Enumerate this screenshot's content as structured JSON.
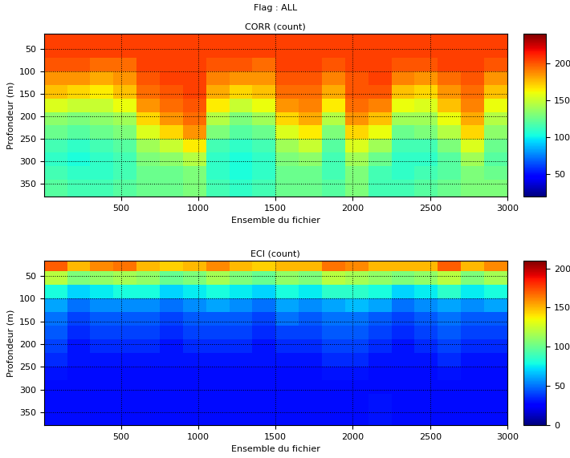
{
  "title": "Flag : ALL",
  "chart_data": [
    {
      "type": "heatmap",
      "title": "CORR (count)",
      "x_label": "Ensemble du fichier",
      "y_label": "Profondeur (m)",
      "x_edges": [
        0,
        150,
        300,
        450,
        600,
        750,
        900,
        1050,
        1200,
        1350,
        1500,
        1650,
        1800,
        1950,
        2100,
        2250,
        2400,
        2550,
        2700,
        2850,
        3000
      ],
      "y_edges": [
        16,
        40,
        70,
        100,
        130,
        160,
        190,
        220,
        250,
        280,
        310,
        340,
        378
      ],
      "xlim": [
        0,
        3000
      ],
      "ylim": [
        378,
        16
      ],
      "xticks": [
        500,
        1000,
        1500,
        2000,
        2500,
        3000
      ],
      "yticks": [
        50,
        100,
        150,
        200,
        250,
        300,
        350
      ],
      "grid": true,
      "colorbar": {
        "range": [
          20,
          240
        ],
        "ticks": [
          50,
          100,
          150,
          200
        ]
      },
      "cells": [
        [
          205,
          205,
          205,
          205,
          205,
          205,
          205,
          205,
          205,
          205,
          205,
          205,
          205,
          205,
          205,
          205,
          205,
          205,
          205,
          205
        ],
        [
          205,
          205,
          205,
          205,
          205,
          205,
          205,
          205,
          205,
          205,
          205,
          205,
          205,
          205,
          205,
          205,
          205,
          205,
          205,
          205
        ],
        [
          200,
          200,
          195,
          195,
          205,
          205,
          205,
          200,
          200,
          195,
          205,
          205,
          200,
          205,
          205,
          200,
          200,
          205,
          205,
          200
        ],
        [
          185,
          185,
          180,
          185,
          200,
          205,
          205,
          190,
          185,
          185,
          200,
          200,
          190,
          200,
          205,
          190,
          185,
          195,
          200,
          185
        ],
        [
          175,
          170,
          165,
          175,
          195,
          200,
          205,
          180,
          170,
          175,
          195,
          195,
          180,
          200,
          200,
          175,
          170,
          185,
          195,
          175
        ],
        [
          155,
          150,
          150,
          160,
          185,
          195,
          200,
          165,
          150,
          160,
          185,
          190,
          165,
          195,
          190,
          160,
          155,
          175,
          190,
          160
        ],
        [
          135,
          130,
          135,
          140,
          170,
          185,
          195,
          145,
          130,
          140,
          170,
          180,
          145,
          185,
          175,
          140,
          140,
          160,
          180,
          145
        ],
        [
          125,
          120,
          125,
          130,
          155,
          170,
          185,
          130,
          120,
          125,
          155,
          165,
          130,
          170,
          160,
          125,
          130,
          145,
          170,
          135
        ],
        [
          115,
          110,
          115,
          120,
          140,
          150,
          165,
          115,
          110,
          115,
          140,
          150,
          120,
          155,
          140,
          115,
          115,
          130,
          155,
          125
        ],
        [
          110,
          105,
          110,
          115,
          130,
          135,
          145,
          110,
          105,
          110,
          130,
          135,
          115,
          140,
          125,
          110,
          110,
          120,
          140,
          120
        ],
        [
          115,
          110,
          110,
          115,
          125,
          125,
          130,
          110,
          105,
          110,
          125,
          125,
          115,
          130,
          115,
          110,
          115,
          120,
          130,
          125
        ],
        [
          120,
          115,
          115,
          120,
          125,
          125,
          130,
          115,
          110,
          115,
          125,
          125,
          120,
          130,
          115,
          115,
          120,
          125,
          130,
          130
        ]
      ]
    },
    {
      "type": "heatmap",
      "title": "ECI (count)",
      "x_label": "Ensemble du fichier",
      "y_label": "Profondeur (m)",
      "x_edges": [
        0,
        150,
        300,
        450,
        600,
        750,
        900,
        1050,
        1200,
        1350,
        1500,
        1650,
        1800,
        1950,
        2100,
        2250,
        2400,
        2550,
        2700,
        2850,
        3000
      ],
      "y_edges": [
        16,
        40,
        70,
        100,
        130,
        160,
        190,
        220,
        250,
        280,
        310,
        340,
        378
      ],
      "xlim": [
        0,
        3000
      ],
      "ylim": [
        378,
        16
      ],
      "xticks": [
        500,
        1000,
        1500,
        2000,
        2500,
        3000
      ],
      "yticks": [
        50,
        100,
        150,
        200,
        250,
        300,
        350
      ],
      "grid": true,
      "colorbar": {
        "range": [
          0,
          210
        ],
        "ticks": [
          0,
          50,
          100,
          150,
          200
        ]
      },
      "cells": [
        [
          170,
          150,
          160,
          165,
          150,
          145,
          150,
          160,
          150,
          145,
          150,
          150,
          165,
          160,
          150,
          150,
          150,
          170,
          150,
          160
        ],
        [
          120,
          105,
          110,
          115,
          110,
          100,
          105,
          115,
          105,
          100,
          110,
          105,
          120,
          115,
          110,
          105,
          110,
          120,
          105,
          115
        ],
        [
          80,
          70,
          75,
          80,
          80,
          70,
          75,
          80,
          75,
          70,
          80,
          75,
          85,
          85,
          80,
          70,
          75,
          85,
          75,
          80
        ],
        [
          60,
          50,
          55,
          55,
          55,
          50,
          55,
          60,
          55,
          50,
          60,
          55,
          60,
          65,
          60,
          50,
          55,
          60,
          55,
          60
        ],
        [
          50,
          40,
          45,
          45,
          45,
          40,
          45,
          45,
          45,
          40,
          50,
          45,
          50,
          50,
          45,
          40,
          45,
          50,
          45,
          45
        ],
        [
          45,
          35,
          40,
          40,
          40,
          35,
          40,
          40,
          40,
          35,
          40,
          40,
          45,
          45,
          40,
          35,
          40,
          45,
          40,
          40
        ],
        [
          40,
          30,
          35,
          35,
          35,
          30,
          35,
          35,
          35,
          30,
          35,
          35,
          40,
          40,
          35,
          30,
          35,
          40,
          35,
          35
        ],
        [
          35,
          30,
          30,
          30,
          30,
          30,
          30,
          30,
          30,
          30,
          30,
          30,
          35,
          35,
          30,
          30,
          30,
          35,
          30,
          30
        ],
        [
          30,
          28,
          28,
          28,
          28,
          28,
          28,
          28,
          28,
          28,
          28,
          28,
          30,
          30,
          28,
          28,
          28,
          30,
          28,
          28
        ],
        [
          28,
          28,
          28,
          28,
          28,
          28,
          28,
          28,
          28,
          28,
          28,
          28,
          28,
          28,
          28,
          28,
          28,
          28,
          28,
          28
        ],
        [
          28,
          28,
          28,
          28,
          28,
          28,
          28,
          28,
          28,
          28,
          28,
          28,
          28,
          28,
          30,
          28,
          28,
          28,
          28,
          28
        ],
        [
          28,
          28,
          28,
          28,
          28,
          28,
          28,
          28,
          28,
          28,
          28,
          28,
          28,
          28,
          30,
          28,
          28,
          28,
          28,
          28
        ]
      ]
    }
  ]
}
